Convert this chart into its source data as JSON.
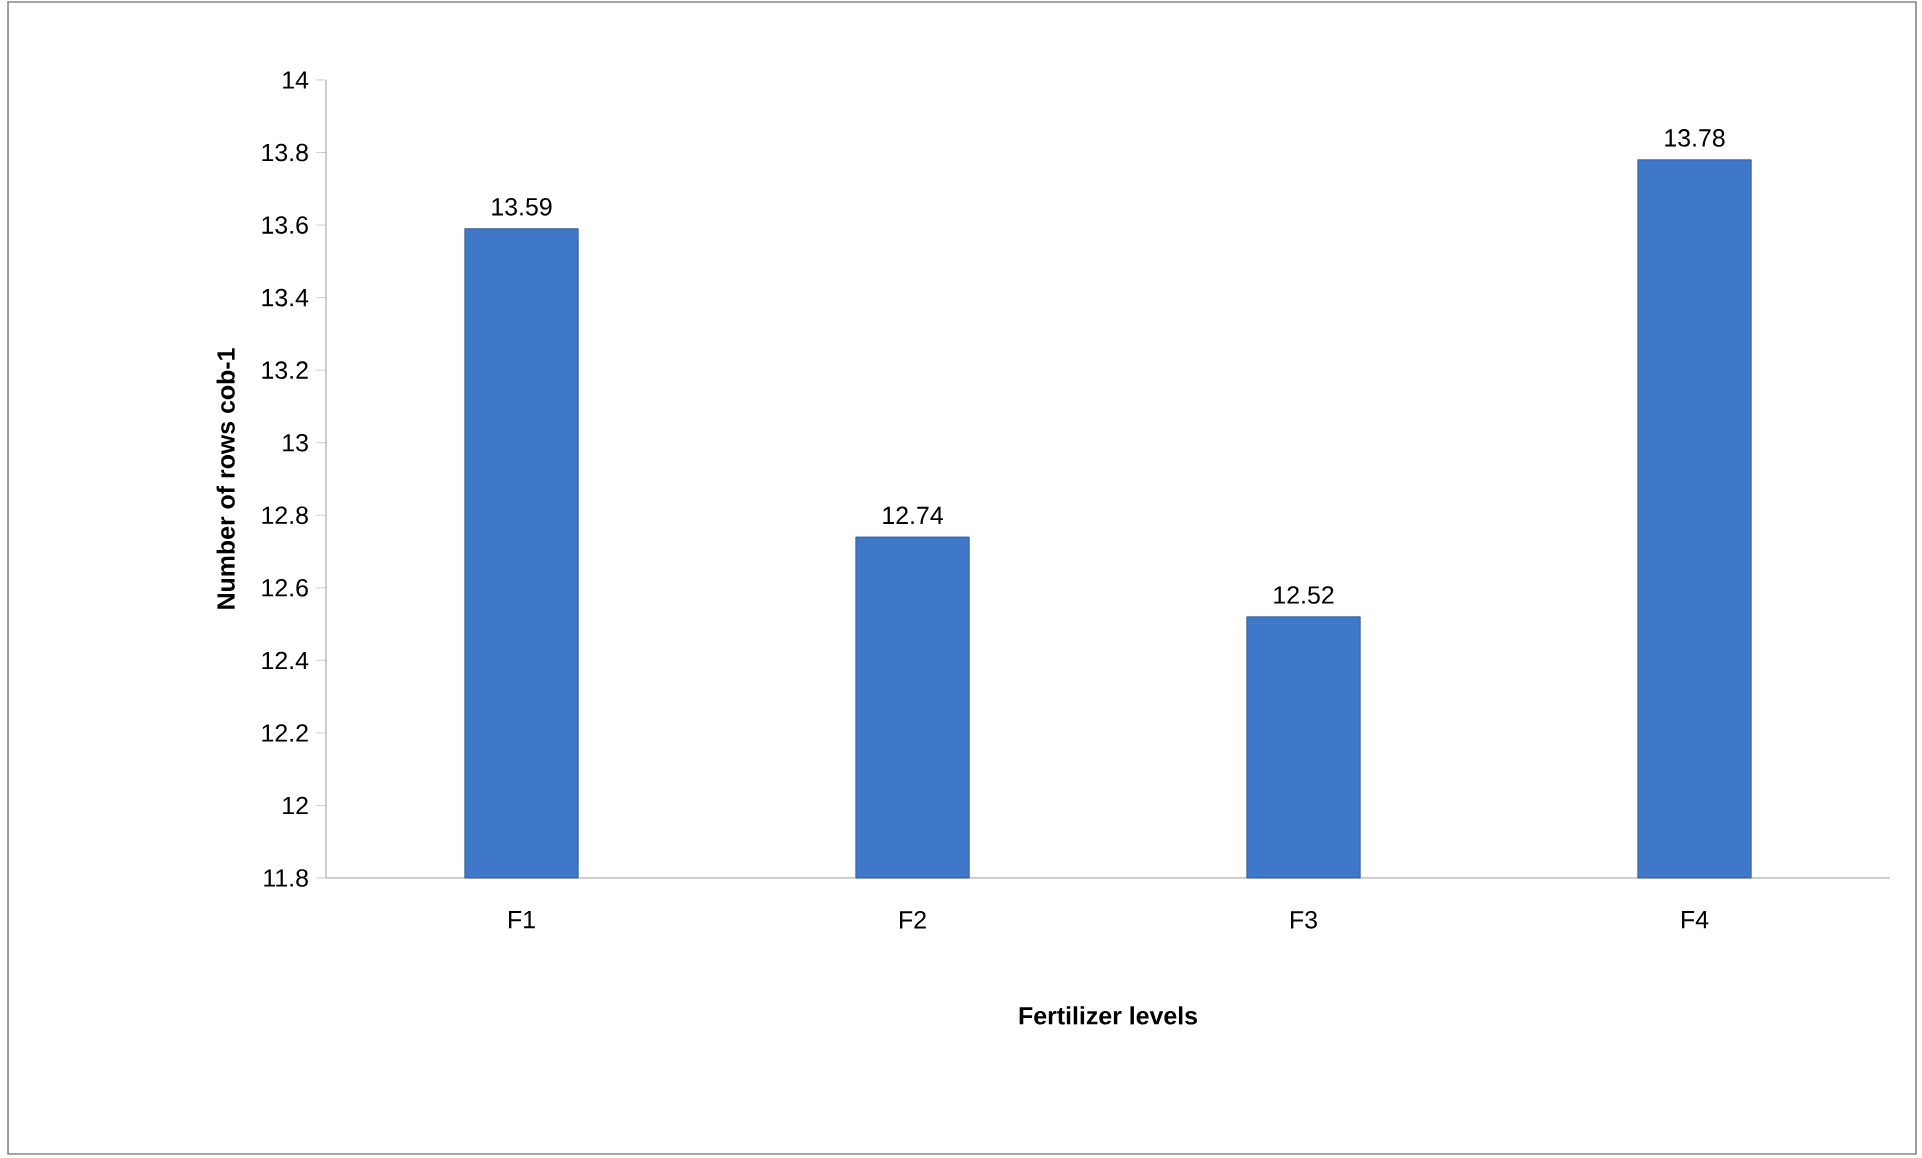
{
  "chart_data": {
    "type": "bar",
    "xlabel": "Fertilizer levels",
    "ylabel": "Number of rows cob-1",
    "categories": [
      "F1",
      "F2",
      "F3",
      "F4"
    ],
    "values": [
      13.59,
      12.74,
      12.52,
      13.78
    ],
    "color": "#3f78c8",
    "ylim": [
      11.8,
      14
    ],
    "yticks": [
      11.8,
      12,
      12.2,
      12.4,
      12.6,
      12.8,
      13,
      13.2,
      13.4,
      13.6,
      13.8,
      14
    ],
    "data_labels": true
  }
}
